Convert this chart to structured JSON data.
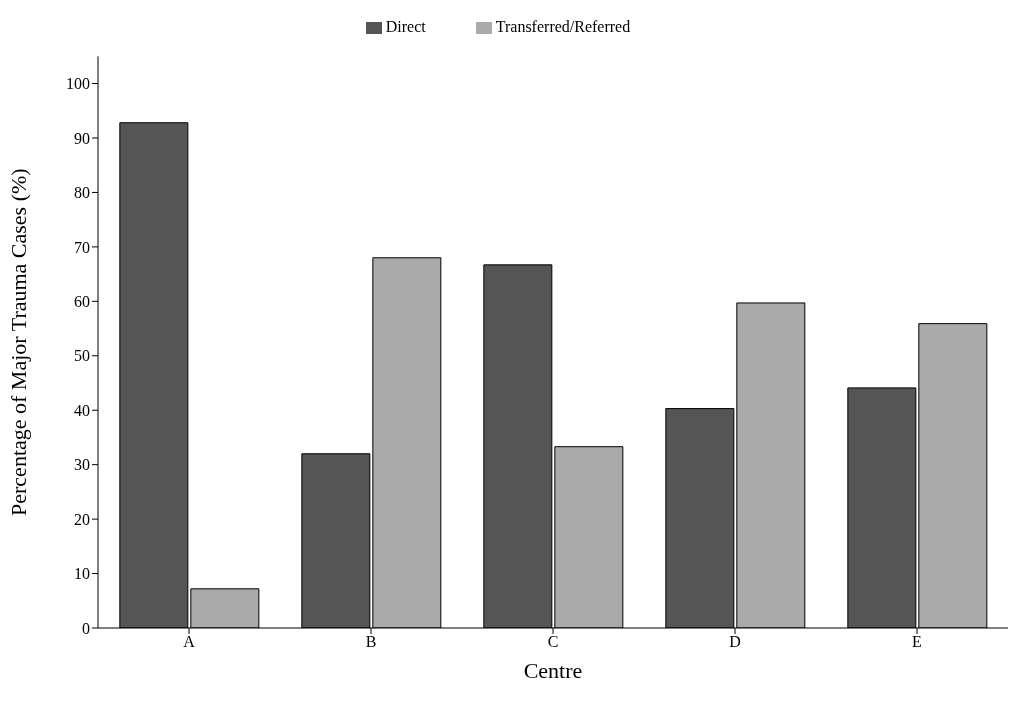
{
  "chart_data": {
    "type": "bar",
    "xlabel": "Centre",
    "ylabel": "Percentage of Major Trauma Cases (%)",
    "categories": [
      "A",
      "B",
      "C",
      "D",
      "E"
    ],
    "series": [
      {
        "name": "Direct",
        "color": "#555555",
        "values": [
          92.8,
          32,
          66.7,
          40.3,
          44.1
        ]
      },
      {
        "name": "Transferred/Referred",
        "color": "#aaaaaa",
        "values": [
          7.2,
          68,
          33.3,
          59.7,
          55.9
        ]
      }
    ],
    "ylim": [
      0,
      105
    ],
    "yticks": [
      0,
      10,
      20,
      30,
      40,
      50,
      60,
      70,
      80,
      90,
      100
    ],
    "grid": false,
    "legend": "top"
  }
}
